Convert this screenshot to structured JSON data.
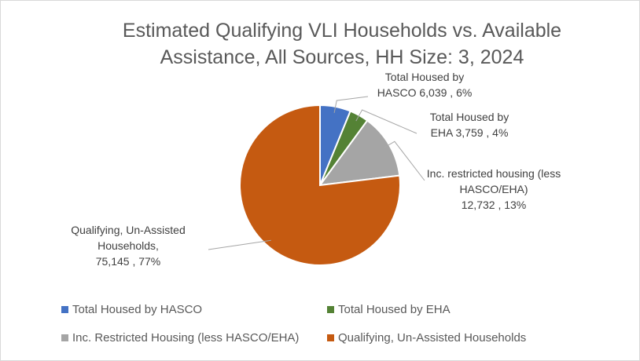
{
  "chart_data": {
    "type": "pie",
    "title_line1": "Estimated Qualifying VLI Households vs. Available",
    "title_line2": "Assistance, All Sources, HH Size: 3, 2024",
    "slices": [
      {
        "name": "Total Housed by HASCO",
        "value": 6039,
        "value_label": "6,039",
        "percent": "6%",
        "color": "#4472c4",
        "label_lines": [
          "Total Housed by",
          "HASCO 6,039 , 6%"
        ]
      },
      {
        "name": "Total Housed by EHA",
        "value": 3759,
        "value_label": "3,759",
        "percent": "4%",
        "color": "#548235",
        "label_lines": [
          "Total Housed by",
          "EHA 3,759 , 4%"
        ]
      },
      {
        "name": "Inc. Restricted Housing (less HASCO/EHA)",
        "value": 12732,
        "value_label": "12,732",
        "percent": "13%",
        "color": "#a5a5a5",
        "label_lines": [
          "Inc. restricted housing (less",
          "HASCO/EHA)",
          "12,732 , 13%"
        ]
      },
      {
        "name": "Qualifying, Un-Assisted Households",
        "value": 75145,
        "value_label": "75,145",
        "percent": "77%",
        "color": "#c55a11",
        "label_lines": [
          "Qualifying, Un-Assisted",
          "Households,",
          "75,145 , 77%"
        ]
      }
    ],
    "legend": [
      {
        "label": "Total Housed by HASCO",
        "color": "#4472c4"
      },
      {
        "label": "Total Housed by EHA",
        "color": "#548235"
      },
      {
        "label": "Inc. Restricted Housing (less HASCO/EHA)",
        "color": "#a5a5a5"
      },
      {
        "label": "Qualifying, Un-Assisted Households",
        "color": "#c55a11"
      }
    ],
    "legend_position": "bottom"
  }
}
